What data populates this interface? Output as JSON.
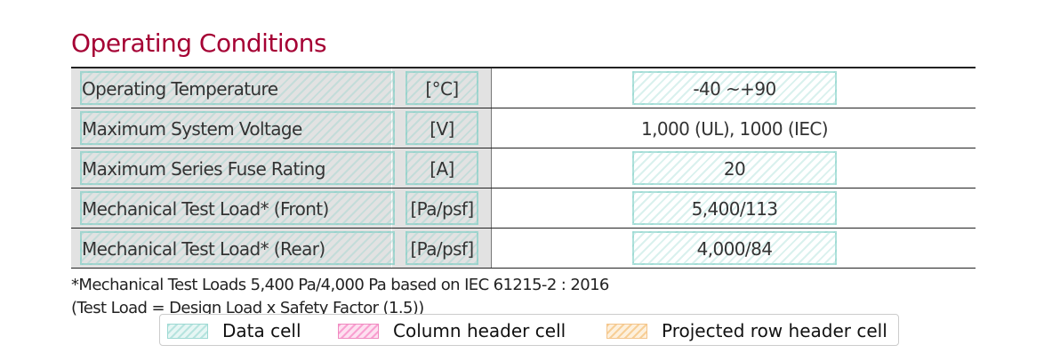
{
  "title": "Operating Conditions",
  "rows": [
    {
      "label": "Operating Temperature",
      "unit": "[°C]",
      "value": "-40 ~+90"
    },
    {
      "label": "Maximum System Voltage",
      "unit": "[V]",
      "value": "1,000 (UL), 1000 (IEC)"
    },
    {
      "label": "Maximum Series Fuse Rating",
      "unit": "[A]",
      "value": "20"
    },
    {
      "label": "Mechanical Test Load* (Front)",
      "unit": "[Pa/psf]",
      "value": "5,400/113"
    },
    {
      "label": "Mechanical Test Load* (Rear)",
      "unit": "[Pa/psf]",
      "value": "4,000/84"
    }
  ],
  "note_line1": "*Mechanical Test Loads 5,400 Pa/4,000 Pa based on IEC 61215-2 : 2016",
  "note_line2": "(Test Load = Design Load x Safety Factor (1.5))",
  "legend": {
    "data_cell": "Data cell",
    "column_header_cell": "Column header cell",
    "projected_row_header_cell": "Projected row header cell"
  },
  "colors": {
    "title": "#a50034",
    "label_bg": "#e2e2e2",
    "data_overlay": "#78cdc3"
  }
}
